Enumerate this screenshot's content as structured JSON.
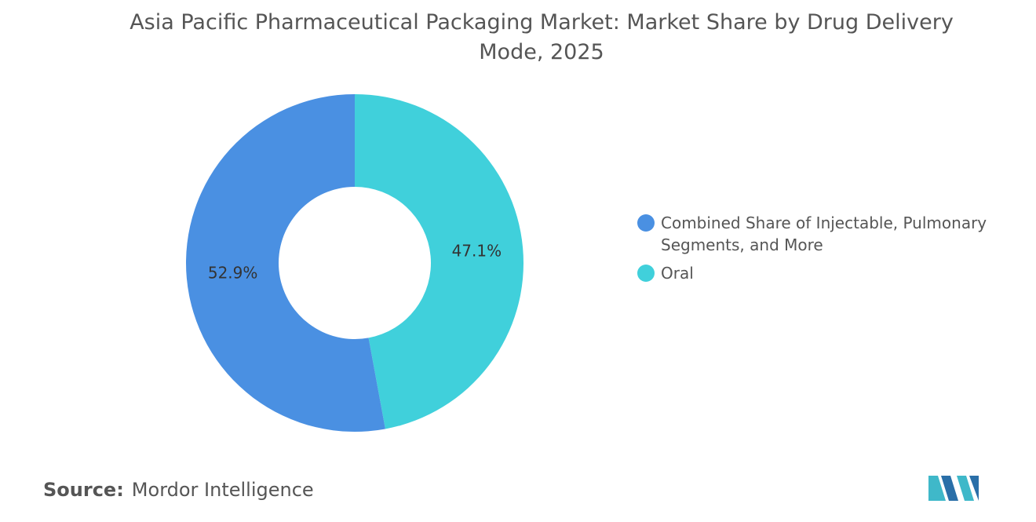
{
  "chart_data": {
    "type": "pie",
    "title": "Asia Pacific Pharmaceutical Packaging Market: Market Share by Drug Delivery Mode, 2025",
    "categories": [
      "Combined Share of Injectable, Pulmonary Segments, and More",
      "Oral"
    ],
    "values": [
      52.9,
      47.1
    ],
    "value_labels": [
      "52.9%",
      "47.1%"
    ],
    "colors": [
      "#4a90e2",
      "#40d0db"
    ],
    "legend": "right"
  },
  "source": {
    "label": "Source:",
    "text": "Mordor Intelligence"
  }
}
